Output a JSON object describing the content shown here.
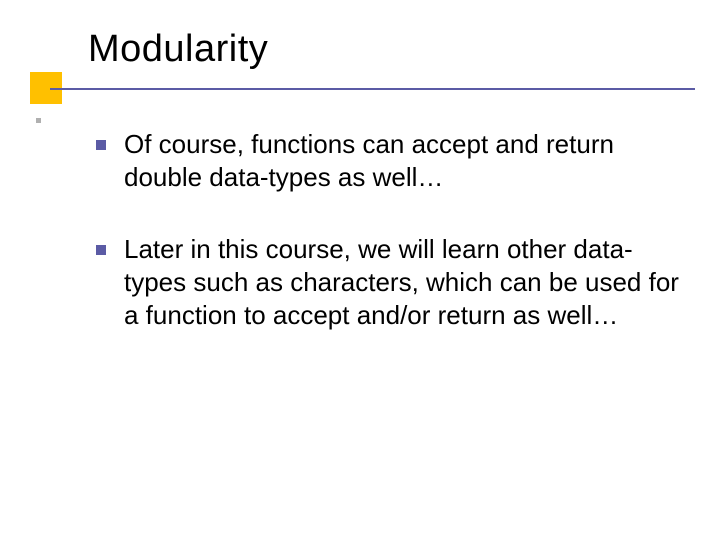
{
  "slide": {
    "title": "Modularity",
    "bullets": [
      {
        "text": "Of course, functions can accept and return double data-types as well…"
      },
      {
        "text": "Later in this course, we will learn other data-types such as characters, which can be used for a function to accept and/or return as well…"
      }
    ]
  },
  "styling": {
    "title_fontsize": 38,
    "title_color": "#000000",
    "body_fontsize": 26,
    "body_color": "#000000",
    "accent_color": "#ffc000",
    "divider_color": "#5b5ba5",
    "bullet_color": "#5b5ba5",
    "small_dot_color": "#b0b0b0",
    "background_color": "#ffffff",
    "font_family": "Verdana"
  }
}
